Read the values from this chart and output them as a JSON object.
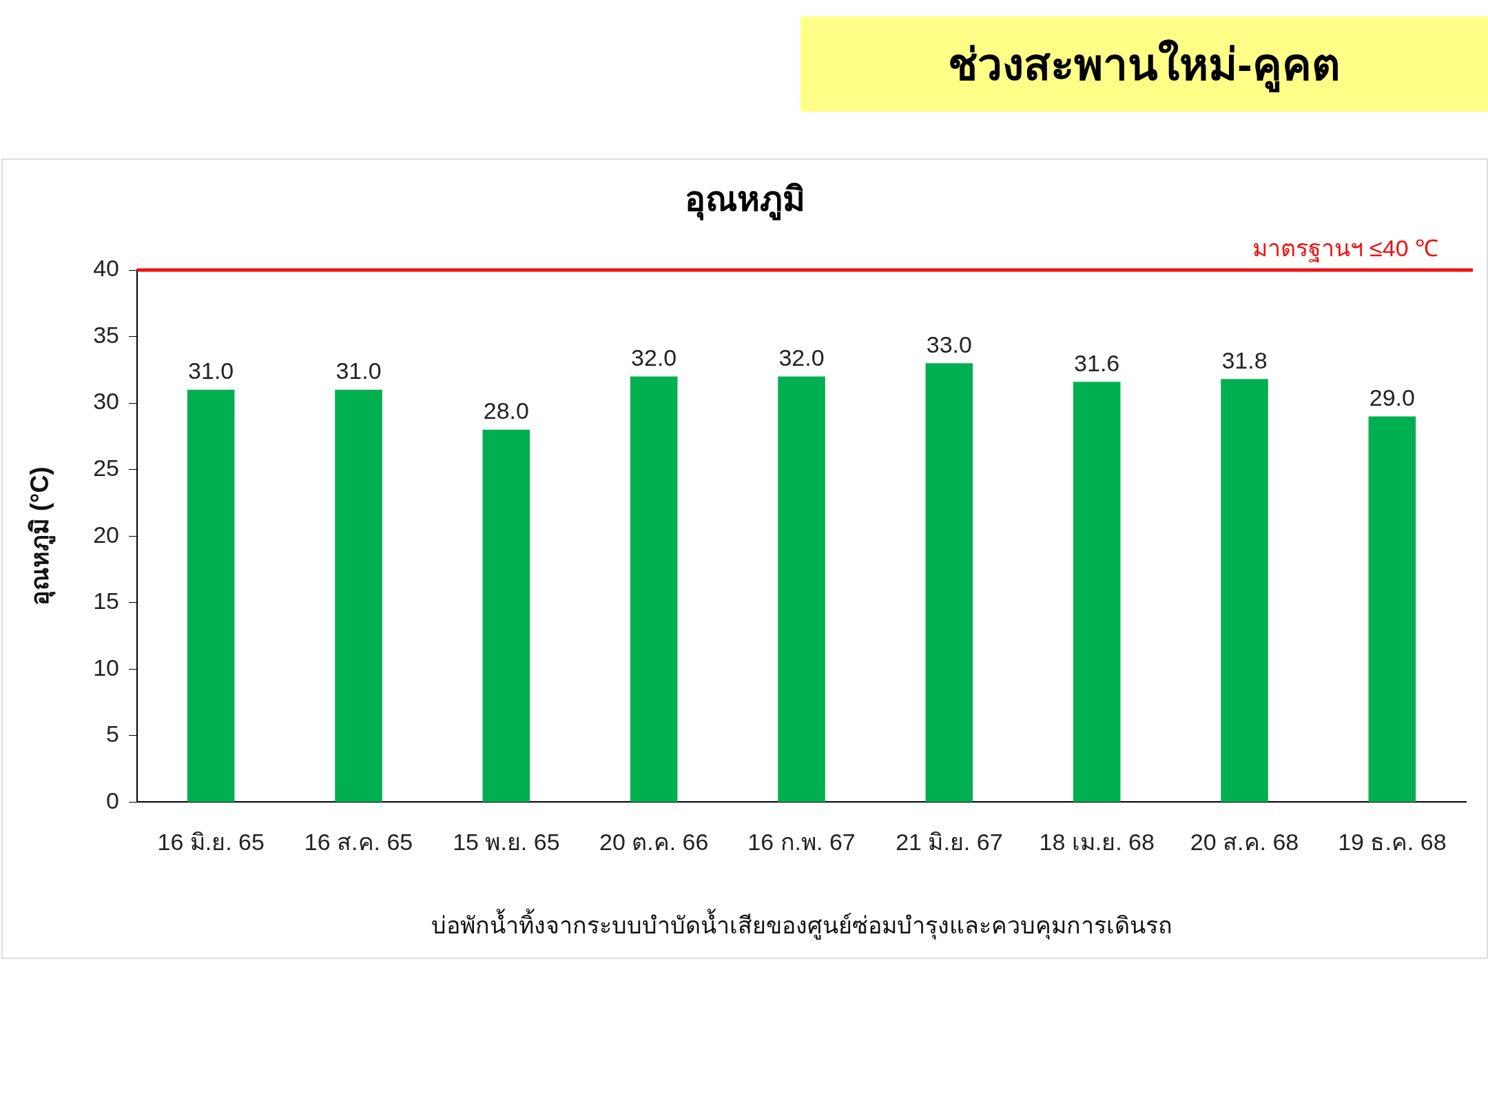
{
  "chart_data": {
    "type": "bar",
    "title": "ช่วงสะพานใหม่-คูคต",
    "subtitle": "อุณหภูมิ",
    "xlabel": "บ่อพักน้ำทิ้งจากระบบบำบัดน้ำเสียของศูนย์ซ่อมบำรุงและควบคุมการเดินรถ",
    "ylabel": "อุณหภูมิ (°C)",
    "categories": [
      "16 มิ.ย. 65",
      "16 ส.ค. 65",
      "15 พ.ย. 65",
      "20 ต.ค. 66",
      "16 ก.พ. 67",
      "21 มิ.ย. 67",
      "18 เม.ย. 68",
      "20 ส.ค. 68",
      "19 ธ.ค. 68"
    ],
    "values": [
      31,
      31,
      28,
      32,
      32,
      33,
      31.6,
      31.8,
      29
    ],
    "value_labels": [
      "31.0",
      "31.0",
      "28.0",
      "32.0",
      "32.0",
      "33.0",
      "31.6",
      "31.8",
      "29.0"
    ],
    "color": "#00b050",
    "ylim": [
      0,
      40
    ],
    "yticks": [
      0,
      5,
      10,
      15,
      20,
      25,
      30,
      35,
      40
    ],
    "ref_lines": [
      {
        "axis": "y",
        "value": 40,
        "label": "มาตรฐานฯ ≤40 ℃",
        "color": "#ee1111"
      }
    ],
    "grid": false,
    "legend": false
  }
}
